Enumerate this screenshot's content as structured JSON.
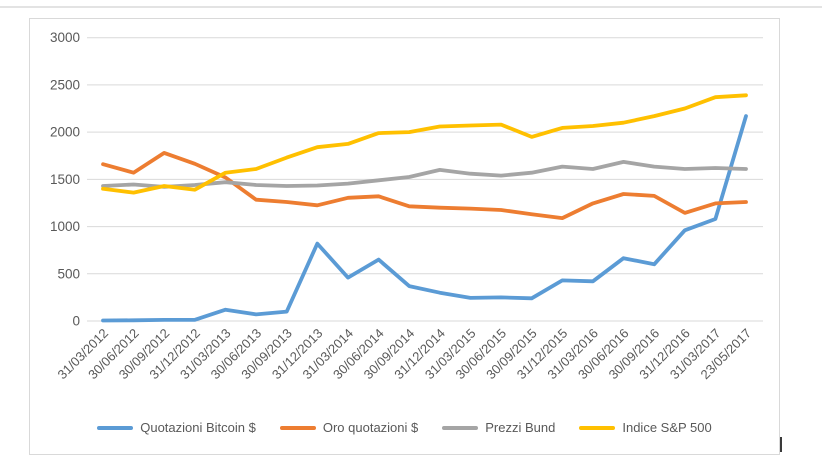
{
  "chart_data": {
    "type": "line",
    "title": "",
    "xlabel": "",
    "ylabel": "",
    "categories": [
      "31/03/2012",
      "30/06/2012",
      "30/09/2012",
      "31/12/2012",
      "31/03/2013",
      "30/06/2013",
      "30/09/2013",
      "31/12/2013",
      "31/03/2014",
      "30/06/2014",
      "30/09/2014",
      "31/12/2014",
      "31/03/2015",
      "30/06/2015",
      "30/09/2015",
      "31/12/2015",
      "31/03/2016",
      "30/06/2016",
      "30/09/2016",
      "31/12/2016",
      "31/03/2017",
      "23/05/2017"
    ],
    "series": [
      {
        "name": "Quotazioni Bitcoin $",
        "color": "#5B9BD5",
        "values": [
          5,
          7,
          12,
          13,
          120,
          70,
          100,
          820,
          460,
          650,
          370,
          300,
          245,
          250,
          240,
          430,
          420,
          665,
          600,
          960,
          1080,
          2170
        ]
      },
      {
        "name": "Oro quotazioni $",
        "color": "#ED7D31",
        "values": [
          1660,
          1570,
          1780,
          1665,
          1520,
          1285,
          1260,
          1225,
          1305,
          1320,
          1215,
          1200,
          1190,
          1175,
          1130,
          1090,
          1245,
          1345,
          1325,
          1145,
          1245,
          1260
        ]
      },
      {
        "name": "Prezzi Bund",
        "color": "#A5A5A5",
        "values": [
          1430,
          1445,
          1420,
          1440,
          1470,
          1440,
          1430,
          1435,
          1455,
          1490,
          1525,
          1600,
          1560,
          1540,
          1570,
          1635,
          1610,
          1685,
          1635,
          1610,
          1620,
          1610
        ]
      },
      {
        "name": "Indice S&P 500",
        "color": "#FFC000",
        "values": [
          1400,
          1360,
          1430,
          1390,
          1570,
          1610,
          1730,
          1840,
          1875,
          1990,
          2000,
          2060,
          2070,
          2080,
          1950,
          2045,
          2065,
          2100,
          2170,
          2250,
          2370,
          2390
        ]
      }
    ],
    "ylim": [
      0,
      3000
    ],
    "ytick_step": 500,
    "yticks": [
      "0",
      "500",
      "1000",
      "1500",
      "2000",
      "2500",
      "3000"
    ],
    "grid": true,
    "legend_position": "bottom"
  },
  "colors": {
    "grid": "#d9d9d9",
    "tick_text": "#595959",
    "panel_border": "#d9d9d9"
  }
}
